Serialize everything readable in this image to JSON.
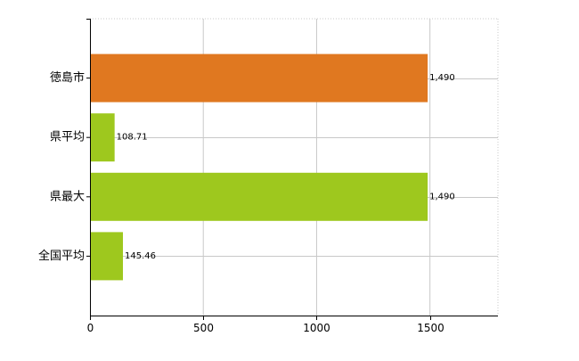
{
  "chart_data": {
    "type": "bar",
    "orientation": "horizontal",
    "categories": [
      "徳島市",
      "県平均",
      "県最大",
      "全国平均"
    ],
    "values": [
      1490,
      108.71,
      1490,
      145.46
    ],
    "data_labels": [
      "1,490",
      "108.71",
      "1,490",
      "145.46"
    ],
    "bar_colors": [
      "#e07820",
      "#9ec81e",
      "#9ec81e",
      "#9ec81e"
    ],
    "xlim": [
      0,
      1800
    ],
    "x_ticks": [
      0,
      500,
      1000,
      1500
    ],
    "x_tick_labels": [
      "0",
      "500",
      "1000",
      "1500"
    ],
    "grid": true,
    "legend": false,
    "title": "",
    "xlabel": "",
    "ylabel": ""
  }
}
